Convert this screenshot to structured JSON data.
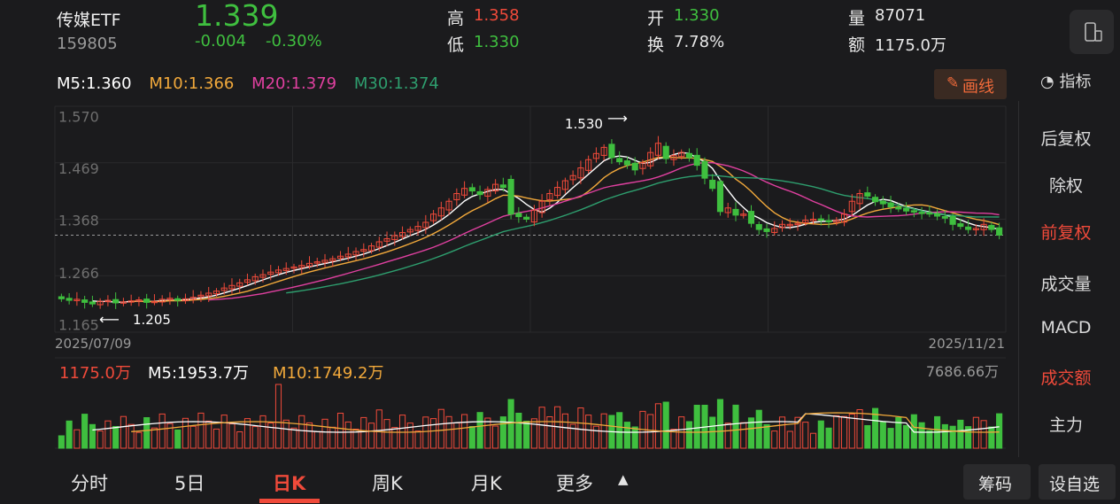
{
  "header": {
    "name": "传媒ETF",
    "code": "159805",
    "price": "1.339",
    "change": "-0.004",
    "change_pct": "-0.30%",
    "high_label": "高",
    "high": "1.358",
    "low_label": "低",
    "low": "1.330",
    "open_label": "开",
    "open": "1.330",
    "turnover_label": "换",
    "turnover": "7.78%",
    "volume_label": "量",
    "volume": "87071",
    "amount_label": "额",
    "amount": "1175.0万"
  },
  "ma_legend": {
    "m5": "M5:1.360",
    "m10": "M10:1.366",
    "m20": "M20:1.379",
    "m30": "M30:1.374"
  },
  "toolbar": {
    "draw_label": "画线",
    "indicator_label": "指标"
  },
  "side_menu": [
    "后复权",
    "除权",
    "前复权",
    "成交量",
    "MACD",
    "成交额",
    "主力"
  ],
  "bottom_tabs": [
    "分时",
    "5日",
    "日K",
    "周K",
    "月K",
    "更多"
  ],
  "bottom_buttons": [
    "筹码",
    "设自选"
  ],
  "volume_legend": {
    "current": "1175.0万",
    "m5": "M5:1953.7万",
    "m10": "M10:1749.2万",
    "max": "7686.66万"
  },
  "colors": {
    "up": "#f04a3a",
    "down": "#3fbf3f",
    "m5": "#ffffff",
    "m10": "#f2a93b",
    "m20": "#e040a0",
    "m30": "#2e9e6e",
    "accent": "#f04a3a"
  },
  "chart_data": {
    "type": "candlestick",
    "x_start_label": "2025/07/09",
    "x_end_label": "2025/11/21",
    "y_ticks": [
      "1.570",
      "1.469",
      "1.368",
      "1.266",
      "1.165"
    ],
    "ylim": [
      1.15,
      1.59
    ],
    "annotations": [
      {
        "text": "1.530",
        "kind": "max"
      },
      {
        "text": "1.205",
        "kind": "min"
      }
    ],
    "last_close": 1.339,
    "closes": [
      1.215,
      1.212,
      1.214,
      1.208,
      1.205,
      1.21,
      1.212,
      1.207,
      1.209,
      1.211,
      1.213,
      1.208,
      1.21,
      1.214,
      1.216,
      1.212,
      1.215,
      1.218,
      1.222,
      1.226,
      1.23,
      1.236,
      1.241,
      1.246,
      1.252,
      1.258,
      1.262,
      1.267,
      1.271,
      1.274,
      1.277,
      1.28,
      1.284,
      1.287,
      1.29,
      1.293,
      1.298,
      1.302,
      1.307,
      1.311,
      1.318,
      1.326,
      1.332,
      1.338,
      1.344,
      1.35,
      1.356,
      1.364,
      1.38,
      1.392,
      1.405,
      1.42,
      1.43,
      1.425,
      1.418,
      1.428,
      1.438,
      1.432,
      1.38,
      1.375,
      1.37,
      1.388,
      1.405,
      1.42,
      1.432,
      1.445,
      1.455,
      1.47,
      1.486,
      1.498,
      1.51,
      1.49,
      1.482,
      1.476,
      1.466,
      1.48,
      1.5,
      1.518,
      1.488,
      1.494,
      1.5,
      1.49,
      1.475,
      1.45,
      1.43,
      1.385,
      1.392,
      1.378,
      1.38,
      1.362,
      1.35,
      1.346,
      1.352,
      1.36,
      1.36,
      1.362,
      1.368,
      1.37,
      1.368,
      1.365,
      1.368,
      1.38,
      1.405,
      1.42,
      1.415,
      1.404,
      1.4,
      1.394,
      1.39,
      1.386,
      1.384,
      1.382,
      1.38,
      1.376,
      1.372,
      1.36,
      1.356,
      1.35,
      1.352,
      1.36,
      1.35,
      1.339
    ],
    "volume_max_label": "7686.66万"
  }
}
